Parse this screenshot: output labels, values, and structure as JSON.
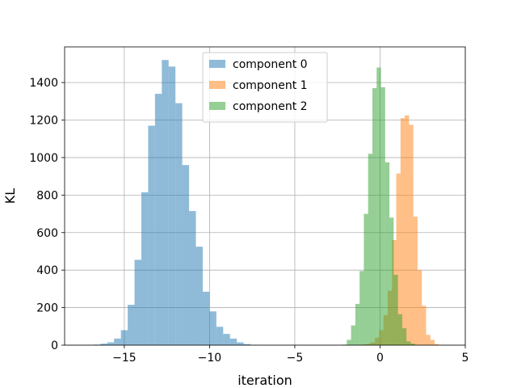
{
  "chart_data": {
    "type": "histogram",
    "xlabel": "iteration",
    "ylabel": "KL",
    "xlim": [
      -18.5,
      5.0
    ],
    "ylim": [
      0,
      1590
    ],
    "xticks": [
      -15,
      -10,
      -5,
      0,
      5
    ],
    "xtick_labels": [
      "−15",
      "−10",
      "−5",
      "0",
      "5"
    ],
    "yticks": [
      0,
      200,
      400,
      600,
      800,
      1000,
      1200,
      1400
    ],
    "yticks_labels": [
      "0",
      "200",
      "400",
      "600",
      "800",
      "1000",
      "1200",
      "1400"
    ],
    "grid": true,
    "legend_position": "upper-center",
    "series": [
      {
        "name": "component 0",
        "color": "#1f77b4",
        "alpha": 0.5,
        "bins": [
          {
            "x0": -16.8,
            "x1": -16.4,
            "count": 3
          },
          {
            "x0": -16.4,
            "x1": -16.0,
            "count": 8
          },
          {
            "x0": -16.0,
            "x1": -15.6,
            "count": 15
          },
          {
            "x0": -15.6,
            "x1": -15.2,
            "count": 35
          },
          {
            "x0": -15.2,
            "x1": -14.8,
            "count": 80
          },
          {
            "x0": -14.8,
            "x1": -14.4,
            "count": 215
          },
          {
            "x0": -14.4,
            "x1": -14.0,
            "count": 455
          },
          {
            "x0": -14.0,
            "x1": -13.6,
            "count": 815
          },
          {
            "x0": -13.6,
            "x1": -13.2,
            "count": 1170
          },
          {
            "x0": -13.2,
            "x1": -12.8,
            "count": 1340
          },
          {
            "x0": -12.8,
            "x1": -12.4,
            "count": 1520
          },
          {
            "x0": -12.4,
            "x1": -12.0,
            "count": 1485
          },
          {
            "x0": -12.0,
            "x1": -11.6,
            "count": 1290
          },
          {
            "x0": -11.6,
            "x1": -11.2,
            "count": 960
          },
          {
            "x0": -11.2,
            "x1": -10.8,
            "count": 715
          },
          {
            "x0": -10.8,
            "x1": -10.4,
            "count": 525
          },
          {
            "x0": -10.4,
            "x1": -10.0,
            "count": 285
          },
          {
            "x0": -10.0,
            "x1": -9.6,
            "count": 180
          },
          {
            "x0": -9.6,
            "x1": -9.2,
            "count": 98
          },
          {
            "x0": -9.2,
            "x1": -8.8,
            "count": 60
          },
          {
            "x0": -8.8,
            "x1": -8.4,
            "count": 35
          },
          {
            "x0": -8.4,
            "x1": -8.0,
            "count": 15
          },
          {
            "x0": -8.0,
            "x1": -7.6,
            "count": 6
          },
          {
            "x0": -7.6,
            "x1": -7.2,
            "count": 2
          }
        ]
      },
      {
        "name": "component 1",
        "color": "#ff7f0e",
        "alpha": 0.5,
        "bins": [
          {
            "x0": -1.3,
            "x1": -1.05,
            "count": 2
          },
          {
            "x0": -1.05,
            "x1": -0.8,
            "count": 4
          },
          {
            "x0": -0.8,
            "x1": -0.55,
            "count": 8
          },
          {
            "x0": -0.55,
            "x1": -0.3,
            "count": 15
          },
          {
            "x0": -0.3,
            "x1": -0.05,
            "count": 40
          },
          {
            "x0": -0.05,
            "x1": 0.2,
            "count": 80
          },
          {
            "x0": 0.2,
            "x1": 0.45,
            "count": 160
          },
          {
            "x0": 0.45,
            "x1": 0.7,
            "count": 290
          },
          {
            "x0": 0.7,
            "x1": 0.95,
            "count": 560
          },
          {
            "x0": 0.95,
            "x1": 1.2,
            "count": 915
          },
          {
            "x0": 1.2,
            "x1": 1.45,
            "count": 1210
          },
          {
            "x0": 1.45,
            "x1": 1.7,
            "count": 1225
          },
          {
            "x0": 1.7,
            "x1": 1.95,
            "count": 1175
          },
          {
            "x0": 1.95,
            "x1": 2.2,
            "count": 685
          },
          {
            "x0": 2.2,
            "x1": 2.45,
            "count": 400
          },
          {
            "x0": 2.45,
            "x1": 2.7,
            "count": 210
          },
          {
            "x0": 2.7,
            "x1": 2.95,
            "count": 55
          },
          {
            "x0": 2.95,
            "x1": 3.2,
            "count": 28
          },
          {
            "x0": 3.2,
            "x1": 3.45,
            "count": 6
          }
        ]
      },
      {
        "name": "component 2",
        "color": "#2ca02c",
        "alpha": 0.5,
        "bins": [
          {
            "x0": -2.2,
            "x1": -1.95,
            "count": 3
          },
          {
            "x0": -1.95,
            "x1": -1.7,
            "count": 28
          },
          {
            "x0": -1.7,
            "x1": -1.45,
            "count": 105
          },
          {
            "x0": -1.45,
            "x1": -1.2,
            "count": 220
          },
          {
            "x0": -1.2,
            "x1": -0.95,
            "count": 395
          },
          {
            "x0": -0.95,
            "x1": -0.7,
            "count": 700
          },
          {
            "x0": -0.7,
            "x1": -0.45,
            "count": 1020
          },
          {
            "x0": -0.45,
            "x1": -0.2,
            "count": 1370
          },
          {
            "x0": -0.2,
            "x1": 0.05,
            "count": 1480
          },
          {
            "x0": 0.05,
            "x1": 0.3,
            "count": 1375
          },
          {
            "x0": 0.3,
            "x1": 0.55,
            "count": 975
          },
          {
            "x0": 0.55,
            "x1": 0.8,
            "count": 680
          },
          {
            "x0": 0.8,
            "x1": 1.05,
            "count": 375
          },
          {
            "x0": 1.05,
            "x1": 1.3,
            "count": 165
          },
          {
            "x0": 1.3,
            "x1": 1.55,
            "count": 90
          },
          {
            "x0": 1.55,
            "x1": 1.8,
            "count": 20
          },
          {
            "x0": 1.8,
            "x1": 2.05,
            "count": 8
          }
        ]
      }
    ]
  }
}
